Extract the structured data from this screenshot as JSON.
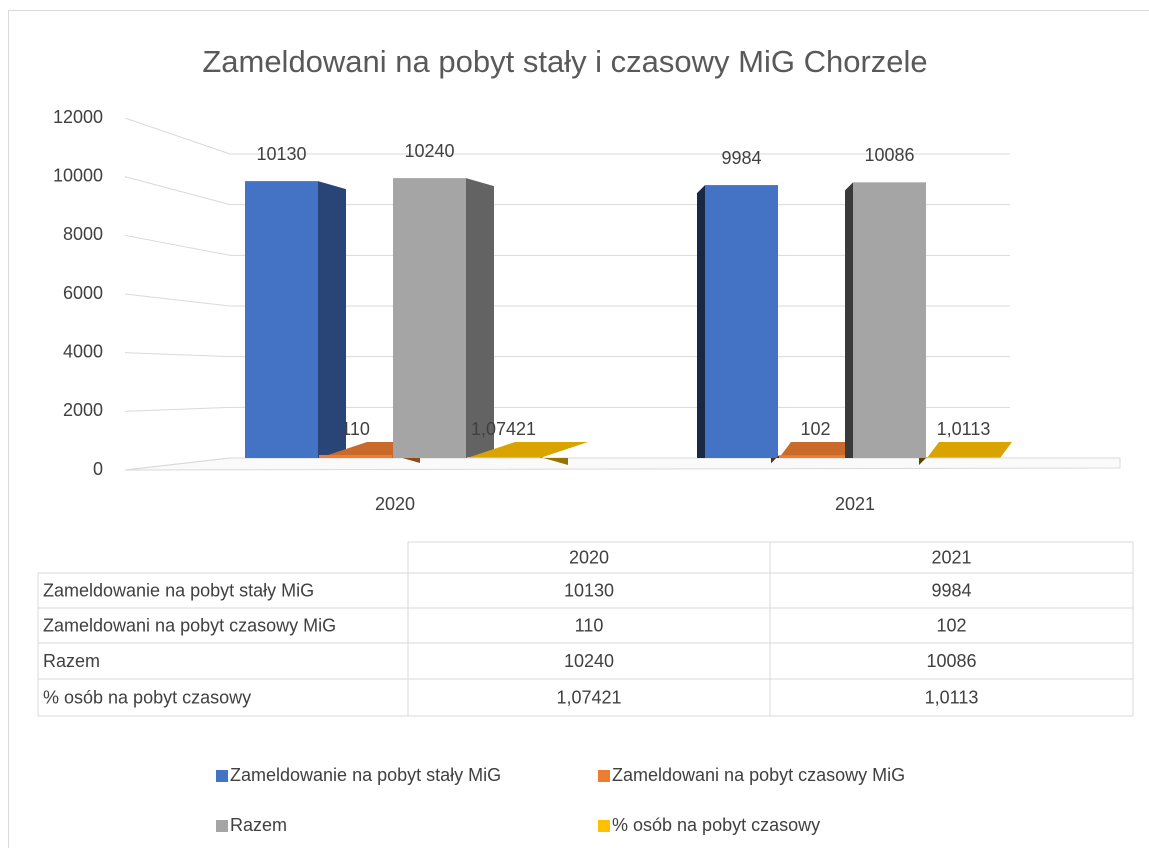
{
  "chart_data": {
    "type": "bar3d",
    "title": "Zameldowani na pobyt stały i czasowy  MiG Chorzele",
    "categories": [
      "2020",
      "2021"
    ],
    "series": [
      {
        "name": "Zameldowanie na pobyt stały MiG",
        "color": "#4472c4",
        "values": [
          10130,
          9984
        ]
      },
      {
        "name": "Zameldowani na pobyt czasowy MiG",
        "color": "#ed7d31",
        "values": [
          110,
          102
        ]
      },
      {
        "name": "Razem",
        "color": "#a5a5a5",
        "values": [
          10240,
          10086
        ]
      },
      {
        "name": "% osób na pobyt czasowy",
        "color": "#ffc000",
        "values": [
          1.07421,
          1.0113
        ],
        "value_labels": [
          "1,07421",
          "1,0113"
        ]
      }
    ],
    "ylim": [
      0,
      12000
    ],
    "yticks": [
      0,
      2000,
      4000,
      6000,
      8000,
      10000,
      12000
    ],
    "grid": true,
    "data_table": true,
    "legend": "bottom"
  }
}
